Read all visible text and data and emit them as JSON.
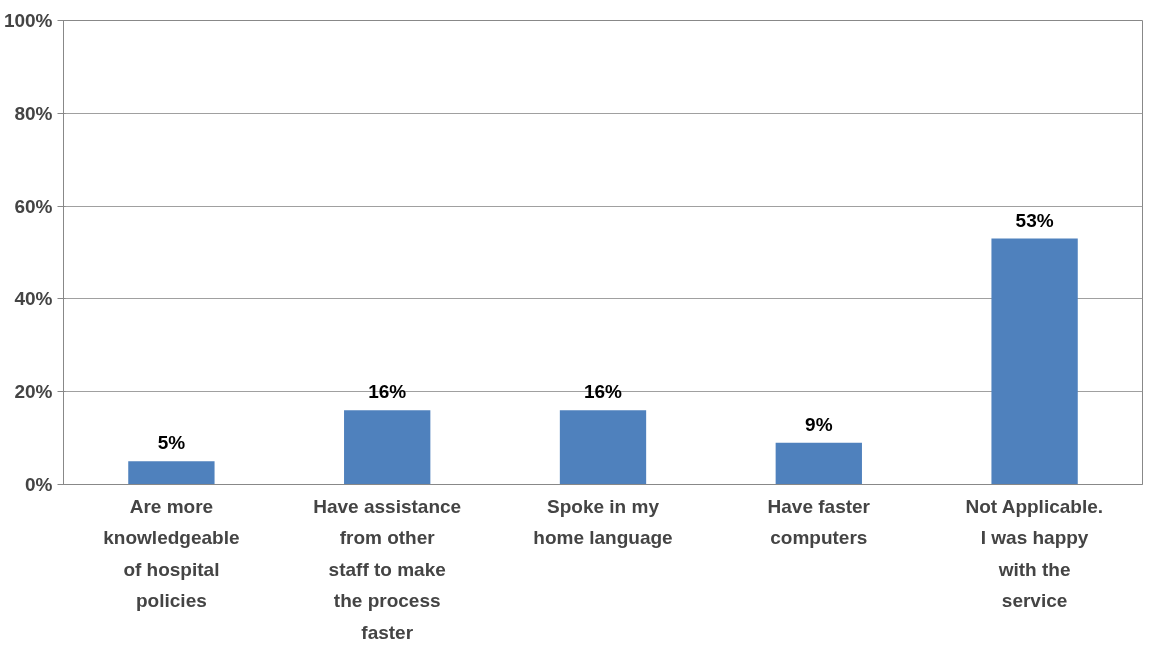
{
  "chart_data": {
    "type": "bar",
    "categories": [
      "Are more knowledgeable of hospital policies",
      "Have assistance from other staff to make the process faster",
      "Spoke in my home language",
      "Have faster computers",
      "Not Applicable. I was happy with the service"
    ],
    "values": [
      5,
      16,
      16,
      9,
      53
    ],
    "value_labels": [
      "5%",
      "16%",
      "16%",
      "9%",
      "53%"
    ],
    "color": "#4f81bd",
    "ylim": [
      0,
      100
    ],
    "yticks": [
      {
        "value": 0,
        "label": "0%"
      },
      {
        "value": 20,
        "label": "20%"
      },
      {
        "value": 40,
        "label": "40%"
      },
      {
        "value": 60,
        "label": "60%"
      },
      {
        "value": 80,
        "label": "80%"
      },
      {
        "value": 100,
        "label": "100%"
      }
    ],
    "grid": "y",
    "legend": false
  }
}
